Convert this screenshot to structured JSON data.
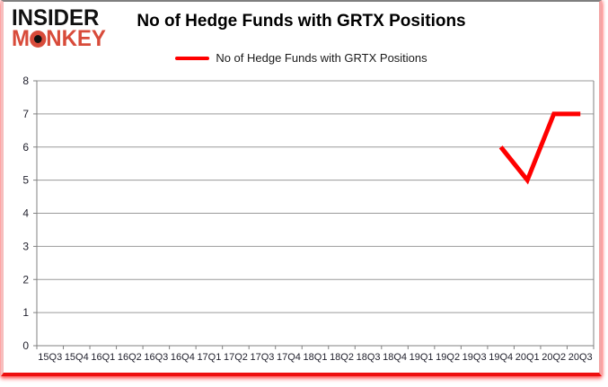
{
  "logo": {
    "line1": "INSIDER",
    "line2_m": "M",
    "line2_o": "O",
    "line2_rest": "NKEY"
  },
  "header": {
    "title": "No of Hedge Funds with GRTX Positions"
  },
  "legend": {
    "label": "No of Hedge Funds with GRTX Positions",
    "color": "#ff0000"
  },
  "chart_data": {
    "type": "line",
    "title": "No of Hedge Funds with GRTX Positions",
    "categories": [
      "15Q3",
      "15Q4",
      "16Q1",
      "16Q2",
      "16Q3",
      "16Q4",
      "17Q1",
      "17Q2",
      "17Q3",
      "17Q4",
      "18Q1",
      "18Q2",
      "18Q3",
      "18Q4",
      "19Q1",
      "19Q2",
      "19Q3",
      "19Q4",
      "20Q1",
      "20Q2",
      "20Q3"
    ],
    "series": [
      {
        "name": "No of Hedge Funds with GRTX Positions",
        "color": "#ff0000",
        "values": [
          null,
          null,
          null,
          null,
          null,
          null,
          null,
          null,
          null,
          null,
          null,
          null,
          null,
          null,
          null,
          null,
          null,
          6,
          5,
          7,
          7
        ]
      }
    ],
    "ylim": [
      0,
      8
    ],
    "yticks": [
      0,
      1,
      2,
      3,
      4,
      5,
      6,
      7,
      8
    ],
    "grid": true,
    "legend_position": "top",
    "xlabel": "",
    "ylabel": ""
  },
  "colors": {
    "series": "#ff0000",
    "gridline": "#9a9a9a",
    "axis": "#808080",
    "tick_label": "#22222e",
    "logo_black": "#111111",
    "logo_red": "#d84b3a",
    "frame_red": "#ee0f0f"
  }
}
